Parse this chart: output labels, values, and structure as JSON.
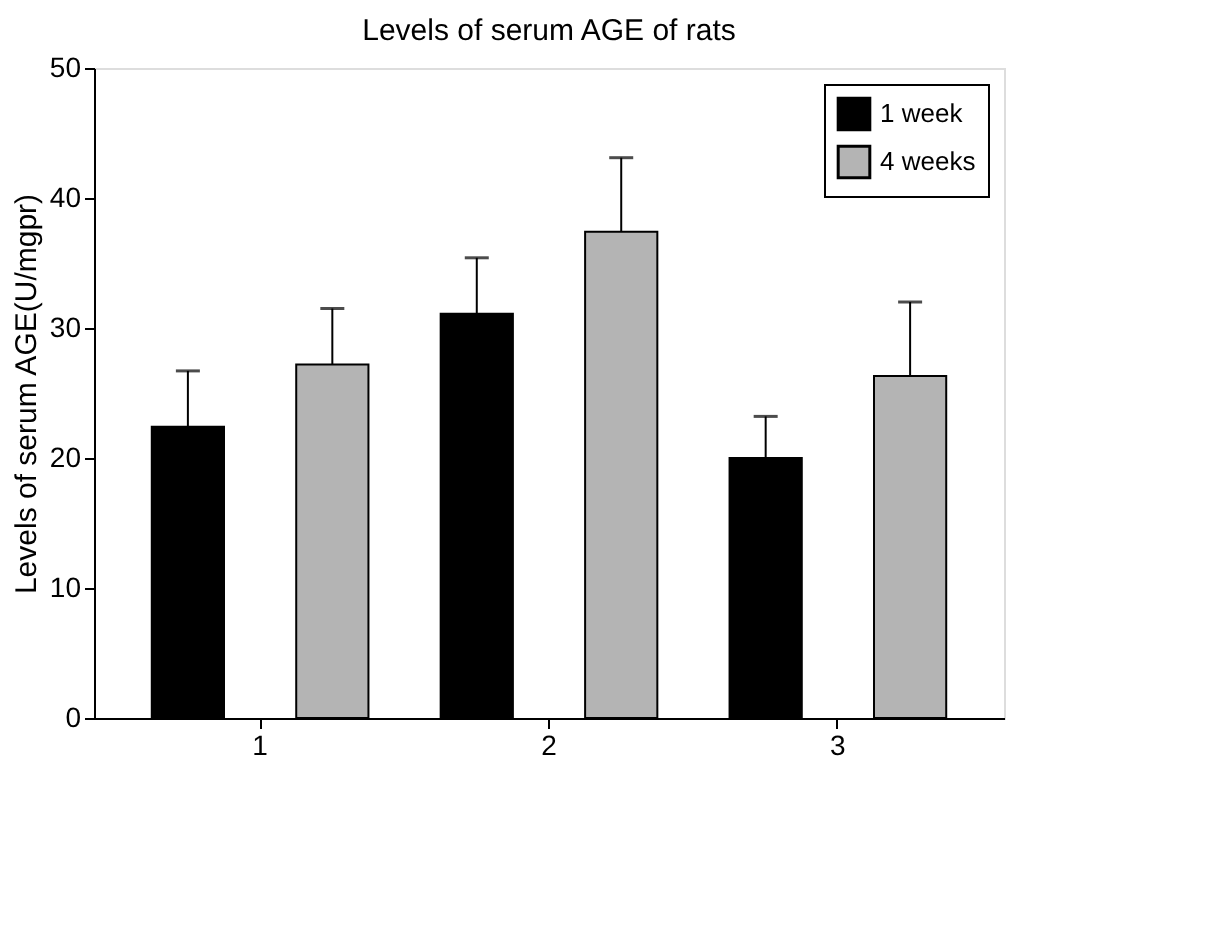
{
  "chart_data": {
    "type": "bar",
    "title": "Levels of serum AGE of rats",
    "ylabel": "Levels of serum AGE(U/mgpr)",
    "categories": [
      "1",
      "2",
      "3"
    ],
    "series": [
      {
        "name": "1 week",
        "color": "#000000",
        "values": [
          22.4,
          31.1,
          20.0
        ],
        "errors": [
          [
            22.4,
            26.7
          ],
          [
            31.1,
            35.4
          ],
          [
            20.0,
            23.2
          ]
        ]
      },
      {
        "name": "4 weeks",
        "color": "#b4b4b4",
        "values": [
          27.2,
          37.4,
          26.3
        ],
        "errors": [
          [
            27.2,
            31.5
          ],
          [
            37.4,
            43.1
          ],
          [
            26.3,
            32.0
          ]
        ]
      }
    ],
    "ylim": [
      0,
      50
    ],
    "yticks": [
      0,
      10,
      20,
      30,
      40,
      50
    ],
    "grid": false,
    "legend": "top right"
  }
}
